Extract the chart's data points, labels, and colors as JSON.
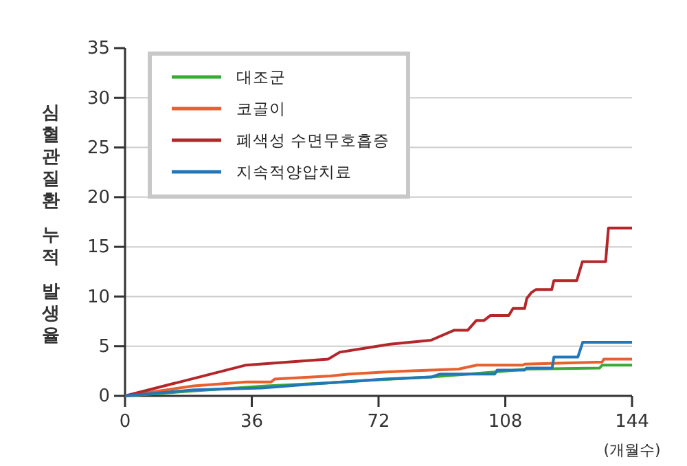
{
  "chart_data": {
    "type": "line",
    "xlabel": "(개월수)",
    "ylabel": "심혈관질환 누적 발생율",
    "xlim": [
      0,
      144
    ],
    "ylim": [
      0,
      35
    ],
    "xticks": [
      0,
      36,
      72,
      108,
      144
    ],
    "yticks": [
      0,
      5,
      10,
      15,
      20,
      25,
      30,
      35
    ],
    "grid": "y",
    "legend": "top left",
    "series": [
      {
        "name": "대조군",
        "color": "#3aa935",
        "x": [
          0,
          19.5,
          40.2,
          57.1,
          71.3,
          86.9,
          105,
          114,
          134.8,
          135.5,
          144
        ],
        "values": [
          0,
          0.5,
          1.0,
          1.3,
          1.6,
          1.9,
          2.4,
          2.7,
          2.8,
          3.1,
          3.1
        ]
      },
      {
        "name": "코골이",
        "color": "#e8602c",
        "x": [
          0,
          19.5,
          34.4,
          41.5,
          42.5,
          58.4,
          63.6,
          73.9,
          80.4,
          94.7,
          99.9,
          113,
          113.5,
          135.5,
          136,
          144
        ],
        "values": [
          0,
          1.0,
          1.4,
          1.4,
          1.7,
          2.0,
          2.2,
          2.4,
          2.5,
          2.7,
          3.1,
          3.1,
          3.2,
          3.4,
          3.7,
          3.7
        ]
      },
      {
        "name": "폐색성 수면무호흡증",
        "color": "#b5262b",
        "x": [
          0,
          34.4,
          57.7,
          61,
          75.3,
          86.9,
          93.4,
          97.3,
          99.8,
          102,
          103.8,
          109,
          110.2,
          113.5,
          114.1,
          115.4,
          116.7,
          121.2,
          121.8,
          128.3,
          129.9,
          136.5,
          137.3,
          144
        ],
        "values": [
          0,
          3.1,
          3.7,
          4.4,
          5.2,
          5.6,
          6.6,
          6.6,
          7.6,
          7.6,
          8.1,
          8.1,
          8.8,
          8.8,
          9.8,
          10.4,
          10.7,
          10.7,
          11.6,
          11.6,
          13.5,
          13.5,
          16.9,
          16.9
        ]
      },
      {
        "name": "지속적양압치료",
        "color": "#2277bb",
        "x": [
          0,
          19.5,
          38.9,
          53.2,
          73.9,
          86.9,
          89.5,
          105,
          105.7,
          113.5,
          114,
          121.3,
          121.8,
          128.6,
          130,
          144
        ],
        "values": [
          0,
          0.6,
          0.8,
          1.2,
          1.7,
          1.9,
          2.2,
          2.2,
          2.6,
          2.6,
          2.8,
          2.8,
          3.9,
          3.9,
          5.4,
          5.4
        ]
      }
    ]
  }
}
